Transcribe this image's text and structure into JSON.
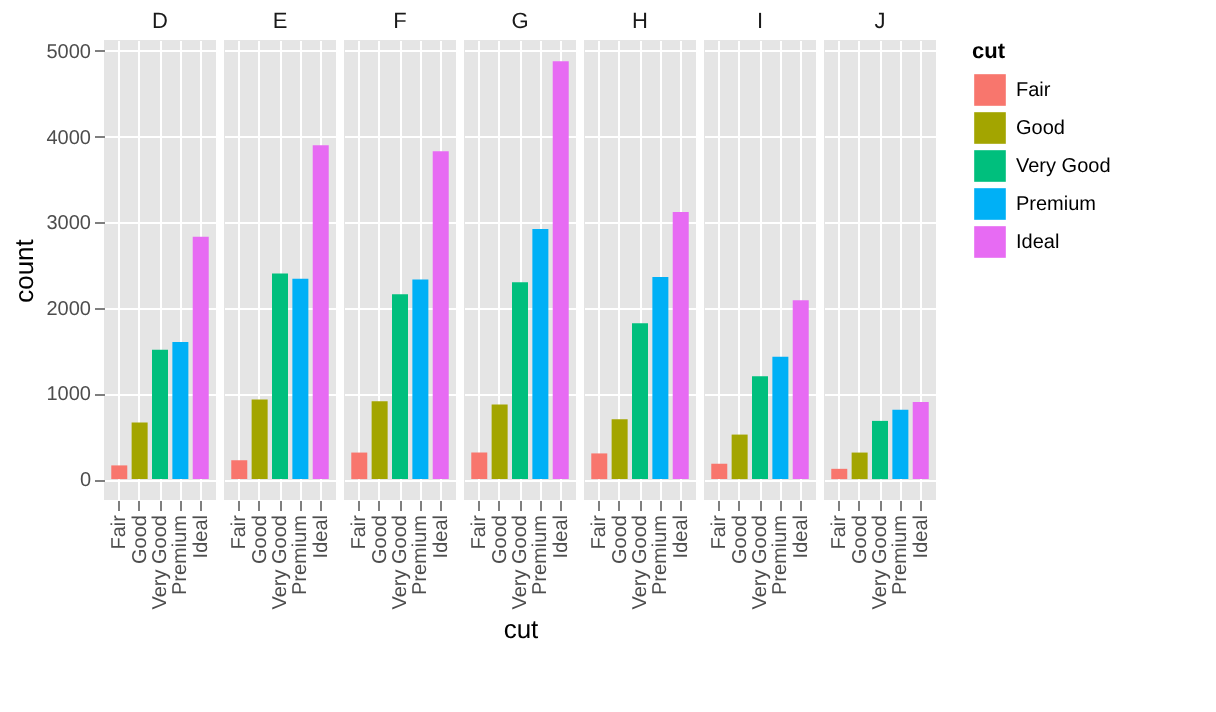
{
  "chart_data": [
    {
      "type": "bar",
      "title": "D",
      "ylabel": "count",
      "categories": [
        "Fair",
        "Good",
        "Very Good",
        "Premium",
        "Ideal"
      ],
      "values": [
        160,
        660,
        1510,
        1600,
        2830
      ],
      "colors": [
        "#f8766d",
        "#a3a500",
        "#00bf7d",
        "#00b0f6",
        "#e76bf3"
      ],
      "ylim": [
        -244,
        5128
      ],
      "yticks": [
        0,
        1000,
        2000,
        3000,
        4000,
        5000
      ],
      "grid": true
    },
    {
      "type": "bar",
      "title": "E",
      "categories": [
        "Fair",
        "Good",
        "Very Good",
        "Premium",
        "Ideal"
      ],
      "values": [
        220,
        930,
        2400,
        2340,
        3900
      ],
      "colors": [
        "#f8766d",
        "#a3a500",
        "#00bf7d",
        "#00b0f6",
        "#e76bf3"
      ],
      "ylim": [
        -244,
        5128
      ],
      "yticks": [
        0,
        1000,
        2000,
        3000,
        4000,
        5000
      ],
      "grid": true,
      "tick_labels": "x"
    },
    {
      "type": "bar",
      "title": "F",
      "categories": [
        "Fair",
        "Good",
        "Very Good",
        "Premium",
        "Ideal"
      ],
      "values": [
        310,
        910,
        2160,
        2330,
        3830
      ],
      "colors": [
        "#f8766d",
        "#a3a500",
        "#00bf7d",
        "#00b0f6",
        "#e76bf3"
      ],
      "ylim": [
        -244,
        5128
      ],
      "yticks": [
        0,
        1000,
        2000,
        3000,
        4000,
        5000
      ],
      "grid": true,
      "tick_labels": "x"
    },
    {
      "type": "bar",
      "title": "G",
      "xlabel": "cut",
      "categories": [
        "Fair",
        "Good",
        "Very Good",
        "Premium",
        "Ideal"
      ],
      "values": [
        310,
        870,
        2300,
        2920,
        4880
      ],
      "colors": [
        "#f8766d",
        "#a3a500",
        "#00bf7d",
        "#00b0f6",
        "#e76bf3"
      ],
      "ylim": [
        -244,
        5128
      ],
      "yticks": [
        0,
        1000,
        2000,
        3000,
        4000,
        5000
      ],
      "grid": true,
      "tick_labels": "x"
    },
    {
      "type": "bar",
      "title": "H",
      "categories": [
        "Fair",
        "Good",
        "Very Good",
        "Premium",
        "Ideal"
      ],
      "values": [
        300,
        700,
        1820,
        2360,
        3120
      ],
      "colors": [
        "#f8766d",
        "#a3a500",
        "#00bf7d",
        "#00b0f6",
        "#e76bf3"
      ],
      "ylim": [
        -244,
        5128
      ],
      "yticks": [
        0,
        1000,
        2000,
        3000,
        4000,
        5000
      ],
      "grid": true,
      "tick_labels": "x"
    },
    {
      "type": "bar",
      "title": "I",
      "categories": [
        "Fair",
        "Good",
        "Very Good",
        "Premium",
        "Ideal"
      ],
      "values": [
        180,
        520,
        1200,
        1430,
        2090
      ],
      "colors": [
        "#f8766d",
        "#a3a500",
        "#00bf7d",
        "#00b0f6",
        "#e76bf3"
      ],
      "ylim": [
        -244,
        5128
      ],
      "yticks": [
        0,
        1000,
        2000,
        3000,
        4000,
        5000
      ],
      "grid": true,
      "tick_labels": "x"
    },
    {
      "type": "bar",
      "title": "J",
      "categories": [
        "Fair",
        "Good",
        "Very Good",
        "Premium",
        "Ideal"
      ],
      "series": [
        {
          "name": "Fair",
          "color": "#f8766d",
          "values": [
            120,
            null,
            null,
            null,
            null
          ]
        },
        {
          "name": "Good",
          "color": "#a3a500",
          "values": [
            null,
            310,
            null,
            null,
            null
          ]
        },
        {
          "name": "Very Good",
          "color": "#00bf7d",
          "values": [
            null,
            null,
            680,
            null,
            null
          ]
        },
        {
          "name": "Premium",
          "color": "#00b0f6",
          "values": [
            null,
            null,
            null,
            810,
            null
          ]
        },
        {
          "name": "Ideal",
          "color": "#e76bf3",
          "values": [
            null,
            null,
            null,
            null,
            900
          ]
        }
      ],
      "ylim": [
        -244,
        5128
      ],
      "yticks": [
        0,
        1000,
        2000,
        3000,
        4000,
        5000
      ],
      "grid": true,
      "tick_labels": "x",
      "legend": "right",
      "legend_title": "cut"
    }
  ]
}
